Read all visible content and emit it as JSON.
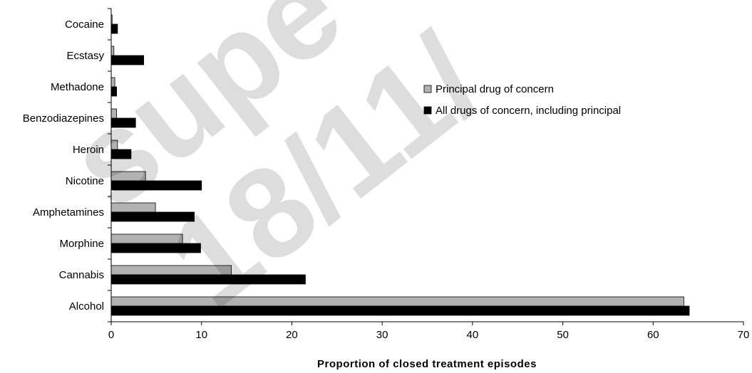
{
  "chart_data": {
    "type": "bar",
    "orientation": "horizontal",
    "title": "",
    "xlabel": "Proportion of closed treatment episodes",
    "ylabel": "",
    "categories": [
      "Cocaine",
      "Ecstasy",
      "Methadone",
      "Benzodiazepines",
      "Heroin",
      "Nicotine",
      "Amphetamines",
      "Morphine",
      "Cannabis",
      "Alcohol"
    ],
    "series": [
      {
        "name": "Principal drug of concern",
        "color": "#b2b2b2",
        "values": [
          0.1,
          0.3,
          0.4,
          0.6,
          0.7,
          3.8,
          4.9,
          7.9,
          13.3,
          63.4
        ]
      },
      {
        "name": "All drugs of concern, including principal",
        "color": "#000000",
        "values": [
          0.7,
          3.6,
          0.6,
          2.7,
          2.2,
          10.0,
          9.2,
          9.9,
          21.5,
          64.0
        ]
      }
    ],
    "xlim": [
      0,
      70
    ],
    "xticks": [
      "0",
      "10",
      "20",
      "30",
      "40",
      "50",
      "60",
      "70"
    ],
    "grid": false,
    "legend_position": "right"
  },
  "watermark": {
    "lines": [
      "supe",
      "18/11/"
    ],
    "color": "#000000"
  }
}
